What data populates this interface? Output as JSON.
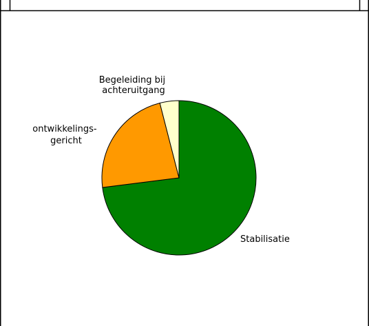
{
  "chart_data": {
    "type": "pie",
    "title": "",
    "slices": [
      {
        "label": "Stabilisatie",
        "value": 73,
        "color": "#008000"
      },
      {
        "label": "ontwikkelings-\ngericht",
        "value": 23,
        "color": "#FF9900"
      },
      {
        "label": "Begeleiding bij\nachteruitgang",
        "value": 4,
        "color": "#FFFFCC"
      }
    ]
  }
}
